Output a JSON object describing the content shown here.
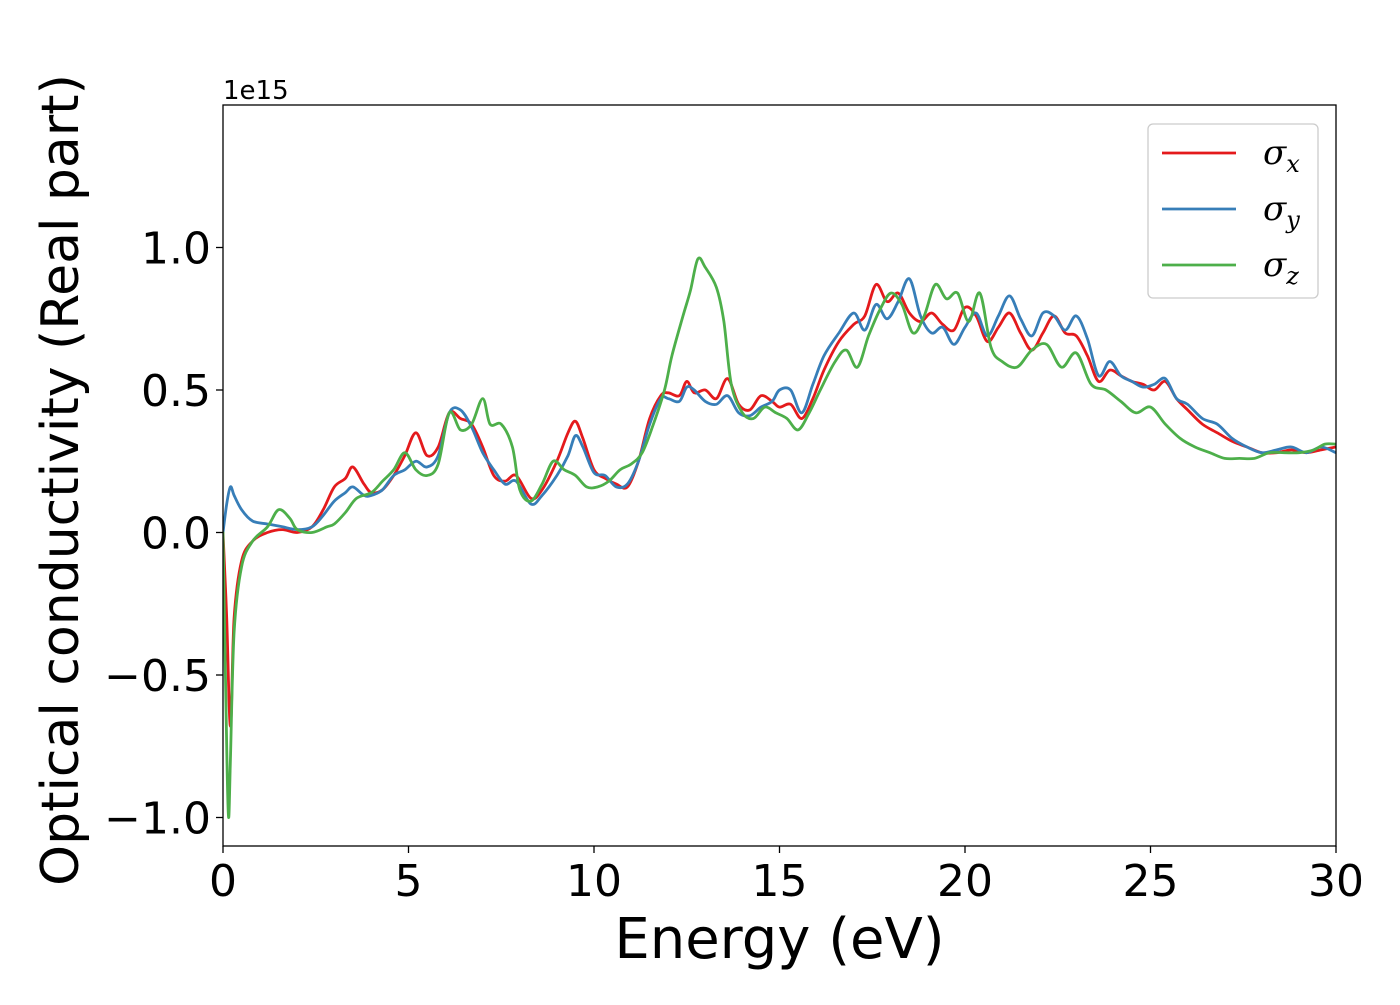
{
  "chart_data": {
    "type": "line",
    "title": "",
    "xlabel": "Energy (eV)",
    "ylabel": "Optical conductivity (Real part)",
    "offset_text": "1e15",
    "xlim": [
      0,
      30
    ],
    "ylim": [
      -1.1,
      1.5
    ],
    "scale_factor": 1000000000000000.0,
    "xticks": [
      0,
      5,
      10,
      15,
      20,
      25,
      30
    ],
    "xtick_labels": [
      "0",
      "5",
      "10",
      "15",
      "20",
      "25",
      "30"
    ],
    "yticks": [
      -1.0,
      -0.5,
      0.0,
      0.5,
      1.0
    ],
    "ytick_labels": [
      "−1.0",
      "−0.5",
      "0.0",
      "0.5",
      "1.0"
    ],
    "grid": false,
    "legend_position": "top-right",
    "series": [
      {
        "name": "σx",
        "symbol": "σ",
        "subscript": "x",
        "color": "#e41a1c",
        "x": [
          0,
          0.1,
          0.2,
          0.3,
          0.5,
          0.8,
          1.2,
          1.6,
          2.0,
          2.4,
          2.7,
          3.0,
          3.3,
          3.5,
          3.8,
          4.0,
          4.3,
          4.6,
          4.9,
          5.2,
          5.5,
          5.8,
          6.1,
          6.4,
          6.7,
          7.0,
          7.3,
          7.6,
          7.9,
          8.3,
          8.6,
          9.0,
          9.3,
          9.5,
          9.7,
          10.0,
          10.3,
          10.6,
          10.9,
          11.2,
          11.5,
          11.8,
          12.0,
          12.3,
          12.5,
          12.7,
          13.0,
          13.3,
          13.6,
          13.9,
          14.2,
          14.5,
          14.8,
          15.0,
          15.3,
          15.6,
          15.9,
          16.2,
          16.6,
          17.0,
          17.3,
          17.6,
          17.9,
          18.2,
          18.5,
          18.8,
          19.1,
          19.4,
          19.7,
          20.0,
          20.3,
          20.6,
          20.9,
          21.2,
          21.5,
          21.8,
          22.1,
          22.4,
          22.7,
          23.0,
          23.3,
          23.6,
          23.9,
          24.2,
          24.5,
          24.8,
          25.1,
          25.4,
          25.7,
          26.0,
          26.4,
          26.8,
          27.2,
          27.6,
          28.0,
          28.4,
          28.8,
          29.2,
          29.6,
          30.0
        ],
        "y": [
          0.0,
          -0.3,
          -0.68,
          -0.3,
          -0.1,
          -0.03,
          0.0,
          0.01,
          0.0,
          0.02,
          0.08,
          0.16,
          0.19,
          0.23,
          0.17,
          0.14,
          0.15,
          0.2,
          0.27,
          0.35,
          0.27,
          0.3,
          0.42,
          0.4,
          0.38,
          0.3,
          0.2,
          0.18,
          0.2,
          0.12,
          0.15,
          0.25,
          0.35,
          0.39,
          0.33,
          0.22,
          0.19,
          0.17,
          0.16,
          0.25,
          0.4,
          0.48,
          0.49,
          0.48,
          0.53,
          0.49,
          0.5,
          0.47,
          0.54,
          0.45,
          0.43,
          0.48,
          0.46,
          0.44,
          0.45,
          0.4,
          0.47,
          0.57,
          0.67,
          0.73,
          0.76,
          0.87,
          0.81,
          0.84,
          0.77,
          0.74,
          0.77,
          0.73,
          0.71,
          0.79,
          0.76,
          0.67,
          0.72,
          0.77,
          0.7,
          0.64,
          0.7,
          0.76,
          0.7,
          0.69,
          0.62,
          0.53,
          0.57,
          0.55,
          0.53,
          0.52,
          0.5,
          0.53,
          0.47,
          0.43,
          0.38,
          0.35,
          0.32,
          0.3,
          0.28,
          0.28,
          0.29,
          0.28,
          0.29,
          0.3
        ]
      },
      {
        "name": "σy",
        "symbol": "σ",
        "subscript": "y",
        "color": "#377eb8",
        "x": [
          0,
          0.1,
          0.2,
          0.3,
          0.5,
          0.8,
          1.2,
          1.6,
          2.0,
          2.4,
          2.7,
          3.0,
          3.3,
          3.5,
          3.8,
          4.0,
          4.3,
          4.6,
          4.9,
          5.2,
          5.5,
          5.8,
          6.1,
          6.4,
          6.7,
          7.0,
          7.3,
          7.6,
          7.9,
          8.3,
          8.6,
          9.0,
          9.3,
          9.5,
          9.7,
          10.0,
          10.3,
          10.6,
          10.9,
          11.2,
          11.5,
          11.8,
          12.0,
          12.3,
          12.5,
          12.7,
          13.0,
          13.3,
          13.6,
          13.9,
          14.2,
          14.5,
          14.8,
          15.0,
          15.3,
          15.6,
          15.9,
          16.2,
          16.6,
          17.0,
          17.3,
          17.6,
          17.9,
          18.2,
          18.5,
          18.8,
          19.1,
          19.4,
          19.7,
          20.0,
          20.3,
          20.6,
          20.9,
          21.2,
          21.5,
          21.8,
          22.1,
          22.4,
          22.7,
          23.0,
          23.3,
          23.6,
          23.9,
          24.2,
          24.5,
          24.8,
          25.1,
          25.4,
          25.7,
          26.0,
          26.4,
          26.8,
          27.2,
          27.6,
          28.0,
          28.4,
          28.8,
          29.2,
          29.6,
          30.0
        ],
        "y": [
          0.0,
          0.1,
          0.16,
          0.13,
          0.08,
          0.04,
          0.03,
          0.02,
          0.01,
          0.02,
          0.06,
          0.11,
          0.14,
          0.16,
          0.13,
          0.13,
          0.15,
          0.2,
          0.22,
          0.25,
          0.23,
          0.27,
          0.42,
          0.43,
          0.37,
          0.28,
          0.22,
          0.17,
          0.18,
          0.1,
          0.13,
          0.2,
          0.27,
          0.34,
          0.3,
          0.21,
          0.2,
          0.16,
          0.17,
          0.25,
          0.38,
          0.47,
          0.47,
          0.46,
          0.51,
          0.5,
          0.46,
          0.45,
          0.48,
          0.42,
          0.41,
          0.44,
          0.46,
          0.5,
          0.5,
          0.42,
          0.52,
          0.62,
          0.7,
          0.77,
          0.71,
          0.8,
          0.75,
          0.81,
          0.89,
          0.76,
          0.7,
          0.72,
          0.66,
          0.72,
          0.77,
          0.69,
          0.76,
          0.83,
          0.75,
          0.69,
          0.77,
          0.76,
          0.71,
          0.76,
          0.68,
          0.55,
          0.6,
          0.55,
          0.53,
          0.51,
          0.52,
          0.54,
          0.47,
          0.45,
          0.4,
          0.38,
          0.33,
          0.3,
          0.28,
          0.29,
          0.3,
          0.28,
          0.3,
          0.28
        ]
      },
      {
        "name": "σz",
        "symbol": "σ",
        "subscript": "z",
        "color": "#4daf4a",
        "x": [
          0,
          0.1,
          0.15,
          0.2,
          0.3,
          0.5,
          0.8,
          1.2,
          1.5,
          1.8,
          2.0,
          2.4,
          2.8,
          3.0,
          3.3,
          3.6,
          4.0,
          4.3,
          4.6,
          4.9,
          5.2,
          5.5,
          5.8,
          6.1,
          6.4,
          6.7,
          7.0,
          7.2,
          7.5,
          7.8,
          8.0,
          8.3,
          8.6,
          8.9,
          9.2,
          9.5,
          9.8,
          10.1,
          10.4,
          10.7,
          11.0,
          11.3,
          11.6,
          11.9,
          12.1,
          12.4,
          12.6,
          12.8,
          13.0,
          13.3,
          13.5,
          13.7,
          14.0,
          14.3,
          14.6,
          14.9,
          15.2,
          15.5,
          15.8,
          16.1,
          16.5,
          16.8,
          17.1,
          17.4,
          17.7,
          18.0,
          18.3,
          18.6,
          18.9,
          19.2,
          19.5,
          19.8,
          20.1,
          20.4,
          20.7,
          21.0,
          21.4,
          21.8,
          22.2,
          22.6,
          23.0,
          23.4,
          23.8,
          24.2,
          24.6,
          25.0,
          25.4,
          25.8,
          26.2,
          26.6,
          27.0,
          27.4,
          27.8,
          28.2,
          28.6,
          29.0,
          29.4,
          29.7,
          30.0
        ],
        "y": [
          0.0,
          -0.75,
          -1.0,
          -0.8,
          -0.35,
          -0.12,
          -0.03,
          0.02,
          0.08,
          0.05,
          0.01,
          0.0,
          0.02,
          0.03,
          0.07,
          0.12,
          0.14,
          0.18,
          0.22,
          0.28,
          0.22,
          0.2,
          0.24,
          0.42,
          0.36,
          0.38,
          0.47,
          0.38,
          0.38,
          0.3,
          0.15,
          0.11,
          0.17,
          0.25,
          0.22,
          0.2,
          0.16,
          0.16,
          0.18,
          0.22,
          0.24,
          0.28,
          0.38,
          0.5,
          0.62,
          0.76,
          0.85,
          0.96,
          0.93,
          0.86,
          0.74,
          0.52,
          0.42,
          0.4,
          0.44,
          0.42,
          0.4,
          0.36,
          0.42,
          0.5,
          0.6,
          0.64,
          0.58,
          0.69,
          0.78,
          0.84,
          0.8,
          0.7,
          0.76,
          0.87,
          0.82,
          0.84,
          0.74,
          0.84,
          0.65,
          0.6,
          0.58,
          0.64,
          0.66,
          0.58,
          0.63,
          0.52,
          0.5,
          0.46,
          0.42,
          0.44,
          0.38,
          0.33,
          0.3,
          0.28,
          0.26,
          0.26,
          0.26,
          0.28,
          0.28,
          0.28,
          0.29,
          0.31,
          0.31
        ]
      }
    ]
  }
}
